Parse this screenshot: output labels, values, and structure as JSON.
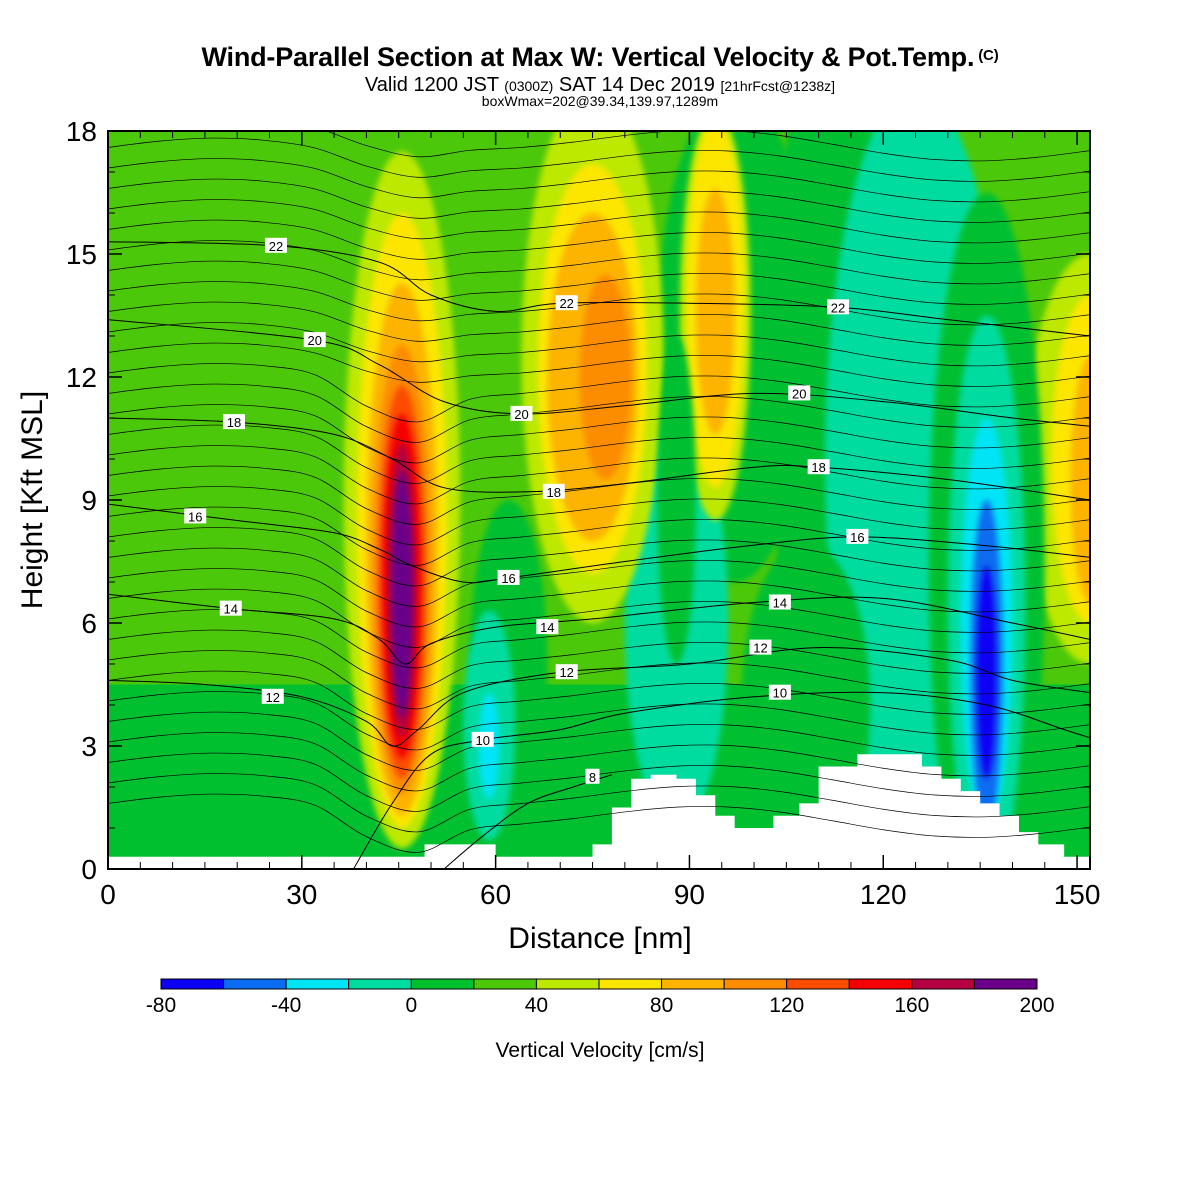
{
  "header": {
    "title": "Wind-Parallel Section at Max W: Vertical Velocity & Pot.Temp.",
    "copyright_mark": "(C)",
    "valid_label": "Valid 1200 JST",
    "utc_label": "(0300Z)",
    "date_label": "SAT 14 Dec 2019",
    "forecast_label": "[21hrFcst@1238z]",
    "box_label": "boxWmax=202@39.34,139.97,1289m"
  },
  "chart_data": {
    "type": "heatmap",
    "xlabel": "Distance [nm]",
    "ylabel": "Height [Kft MSL]",
    "xlim": [
      0,
      152
    ],
    "ylim": [
      0,
      18
    ],
    "x_ticks": [
      0,
      30,
      60,
      90,
      120,
      150
    ],
    "y_ticks": [
      0,
      3,
      6,
      9,
      12,
      15,
      18
    ],
    "colorbar": {
      "title": "Vertical Velocity [cm/s]",
      "levels": [
        -80,
        -60,
        -40,
        -20,
        0,
        20,
        40,
        60,
        80,
        100,
        120,
        140,
        160,
        180,
        200
      ],
      "labels": [
        "-80",
        "-40",
        "0",
        "40",
        "80",
        "120",
        "160",
        "200"
      ],
      "colors": [
        "#0a00f5",
        "#0a6cf0",
        "#00e4f5",
        "#00dca0",
        "#00c030",
        "#4cc80a",
        "#bde800",
        "#fce600",
        "#fcb400",
        "#fc8c00",
        "#fc4c00",
        "#f50000",
        "#b40040",
        "#6a008a"
      ]
    },
    "features": [
      {
        "name": "updraft",
        "x": 45.5,
        "y": 6.7,
        "peak_cm_s": 200
      },
      {
        "name": "updraft",
        "x": 75,
        "y": 12,
        "peak_cm_s": 110
      },
      {
        "name": "updraft",
        "x": 94,
        "y": 13.5,
        "peak_cm_s": 85
      },
      {
        "name": "updraft",
        "x": 152,
        "y": 10,
        "peak_cm_s": 75
      },
      {
        "name": "downdraft",
        "x": 136,
        "y": 5,
        "peak_cm_s": -75
      },
      {
        "name": "downdraft",
        "x": 59,
        "y": 3,
        "peak_cm_s": -30
      }
    ],
    "terrain": [
      [
        0,
        0.3
      ],
      [
        49,
        0.3
      ],
      [
        49,
        0.6
      ],
      [
        60,
        0.6
      ],
      [
        60,
        0.3
      ],
      [
        75,
        0.3
      ],
      [
        75,
        0.6
      ],
      [
        78,
        0.6
      ],
      [
        78,
        1.5
      ],
      [
        81,
        1.5
      ],
      [
        81,
        2.2
      ],
      [
        84,
        2.2
      ],
      [
        84,
        2.3
      ],
      [
        88,
        2.3
      ],
      [
        88,
        2.2
      ],
      [
        91,
        2.2
      ],
      [
        91,
        1.8
      ],
      [
        94,
        1.8
      ],
      [
        94,
        1.3
      ],
      [
        97,
        1.3
      ],
      [
        97,
        1.0
      ],
      [
        103,
        1.0
      ],
      [
        103,
        1.3
      ],
      [
        107,
        1.3
      ],
      [
        107,
        1.6
      ],
      [
        110,
        1.6
      ],
      [
        110,
        2.5
      ],
      [
        116,
        2.5
      ],
      [
        116,
        2.8
      ],
      [
        126,
        2.8
      ],
      [
        126,
        2.5
      ],
      [
        129,
        2.5
      ],
      [
        129,
        2.2
      ],
      [
        132,
        2.2
      ],
      [
        132,
        1.9
      ],
      [
        135,
        1.9
      ],
      [
        135,
        1.6
      ],
      [
        138,
        1.6
      ],
      [
        138,
        1.3
      ],
      [
        141,
        1.3
      ],
      [
        141,
        0.9
      ],
      [
        144,
        0.9
      ],
      [
        144,
        0.6
      ],
      [
        148,
        0.6
      ],
      [
        148,
        0.3
      ],
      [
        152,
        0.3
      ]
    ],
    "theta_contours": [
      {
        "label": "8",
        "label_x": 75,
        "label_y": 2.25,
        "path": [
          [
            52,
            0
          ],
          [
            58,
            0.8
          ],
          [
            65,
            1.6
          ],
          [
            72,
            2.0
          ],
          [
            78,
            2.3
          ]
        ]
      },
      {
        "label": "10",
        "label_x": 58,
        "label_y": 3.15,
        "path": [
          [
            38,
            0
          ],
          [
            44,
            1.6
          ],
          [
            50,
            2.8
          ],
          [
            58,
            3.15
          ],
          [
            70,
            3.4
          ],
          [
            80,
            3.8
          ],
          [
            100,
            4.2
          ],
          [
            120,
            4.3
          ],
          [
            136,
            4.0
          ],
          [
            148,
            3.4
          ],
          [
            152,
            3.2
          ]
        ]
      },
      {
        "label": "12",
        "label_x": 25.5,
        "label_y": 4.2,
        "path": [
          [
            0,
            4.6
          ],
          [
            15,
            4.5
          ],
          [
            30,
            4.2
          ],
          [
            40,
            3.6
          ],
          [
            44,
            3.0
          ],
          [
            48,
            3.4
          ],
          [
            55,
            4.3
          ],
          [
            70,
            4.8
          ],
          [
            90,
            5.0
          ],
          [
            110,
            5.4
          ],
          [
            130,
            5.1
          ],
          [
            140,
            4.6
          ],
          [
            152,
            4.3
          ]
        ]
      },
      {
        "label": "14",
        "label_x": 19,
        "label_y": 6.35,
        "path": [
          [
            0,
            6.7
          ],
          [
            19,
            6.35
          ],
          [
            35,
            6.1
          ],
          [
            42,
            5.6
          ],
          [
            46,
            5.0
          ],
          [
            50,
            5.5
          ],
          [
            60,
            5.9
          ],
          [
            75,
            6.1
          ],
          [
            100,
            6.5
          ],
          [
            120,
            6.6
          ],
          [
            140,
            6.0
          ],
          [
            152,
            5.6
          ]
        ]
      },
      {
        "label": "16",
        "label_x": 13.5,
        "label_y": 8.6,
        "path": [
          [
            0,
            8.9
          ],
          [
            20,
            8.5
          ],
          [
            35,
            8.2
          ],
          [
            42,
            7.8
          ],
          [
            47,
            7.4
          ],
          [
            55,
            7.0
          ],
          [
            62,
            7.1
          ],
          [
            80,
            7.5
          ],
          [
            100,
            7.9
          ],
          [
            116,
            8.1
          ],
          [
            135,
            7.9
          ],
          [
            152,
            7.6
          ]
        ]
      },
      {
        "label": "18",
        "label_x": 19.5,
        "label_y": 10.9,
        "path": [
          [
            0,
            11.0
          ],
          [
            19.5,
            10.9
          ],
          [
            35,
            10.6
          ],
          [
            44,
            10.0
          ],
          [
            52,
            9.3
          ],
          [
            65,
            9.2
          ],
          [
            80,
            9.4
          ],
          [
            100,
            9.8
          ],
          [
            110,
            9.8
          ],
          [
            130,
            9.5
          ],
          [
            152,
            9.0
          ]
        ]
      },
      {
        "label": "20",
        "label_x": 32,
        "label_y": 12.9,
        "path": [
          [
            0,
            13.4
          ],
          [
            32,
            12.9
          ],
          [
            42,
            12.3
          ],
          [
            52,
            11.4
          ],
          [
            64,
            11.1
          ],
          [
            80,
            11.3
          ],
          [
            100,
            11.6
          ],
          [
            120,
            11.4
          ],
          [
            140,
            11.0
          ],
          [
            152,
            10.8
          ]
        ]
      },
      {
        "label": "22",
        "label_x": 26,
        "label_y": 15.2,
        "path": [
          [
            0,
            15.3
          ],
          [
            26,
            15.2
          ],
          [
            42,
            14.8
          ],
          [
            50,
            14.0
          ],
          [
            60,
            13.6
          ],
          [
            70,
            13.8
          ],
          [
            90,
            13.8
          ],
          [
            113,
            13.7
          ],
          [
            130,
            13.4
          ],
          [
            152,
            13.0
          ]
        ]
      },
      {
        "label": "22",
        "label_x": 71,
        "label_y": 13.8,
        "path": []
      },
      {
        "label": "20",
        "label_x": 107,
        "label_y": 11.6,
        "path": []
      },
      {
        "label": "22",
        "label_x": 113,
        "label_y": 13.7,
        "path": []
      },
      {
        "label": "18",
        "label_x": 69,
        "label_y": 9.2,
        "path": []
      },
      {
        "label": "20",
        "label_x": 64,
        "label_y": 11.1,
        "path": []
      },
      {
        "label": "18",
        "label_x": 110,
        "label_y": 9.8,
        "path": []
      },
      {
        "label": "16",
        "label_x": 62,
        "label_y": 7.1,
        "path": []
      },
      {
        "label": "16",
        "label_x": 116,
        "label_y": 8.1,
        "path": []
      },
      {
        "label": "14",
        "label_x": 68,
        "label_y": 5.9,
        "path": []
      },
      {
        "label": "14",
        "label_x": 104,
        "label_y": 6.5,
        "path": []
      },
      {
        "label": "12",
        "label_x": 71,
        "label_y": 4.8,
        "path": []
      },
      {
        "label": "12",
        "label_x": 101,
        "label_y": 5.4,
        "path": []
      },
      {
        "label": "10",
        "label_x": 104,
        "label_y": 4.3,
        "path": []
      }
    ]
  }
}
